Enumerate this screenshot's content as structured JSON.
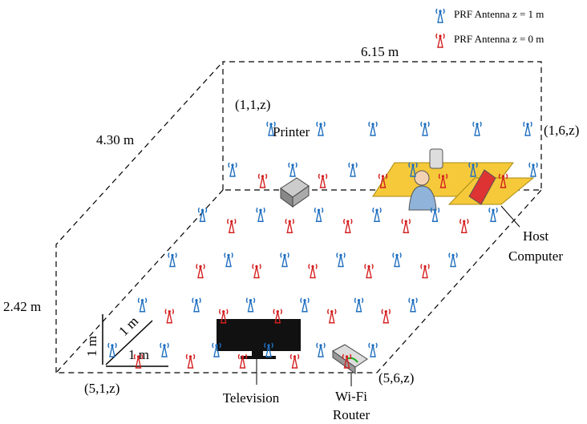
{
  "legend": [
    "PRF Antenna z = 1 m",
    "PRF Antenna z = 0 m"
  ],
  "dimensions": {
    "width": "6.15 m",
    "depth": "4.30 m",
    "height": "2.42 m"
  },
  "corners": {
    "back_left": "(1,1,z)",
    "back_right": "(1,6,z)",
    "front_left": "(5,1,z)",
    "front_right": "(5,6,z)"
  },
  "scale_labels": [
    "1 m",
    "1 m",
    "1 m"
  ],
  "devices": {
    "printer": "Printer",
    "host": [
      "Host",
      "Computer"
    ],
    "television": "Television",
    "router": [
      "Wi-Fi",
      "Router"
    ]
  }
}
